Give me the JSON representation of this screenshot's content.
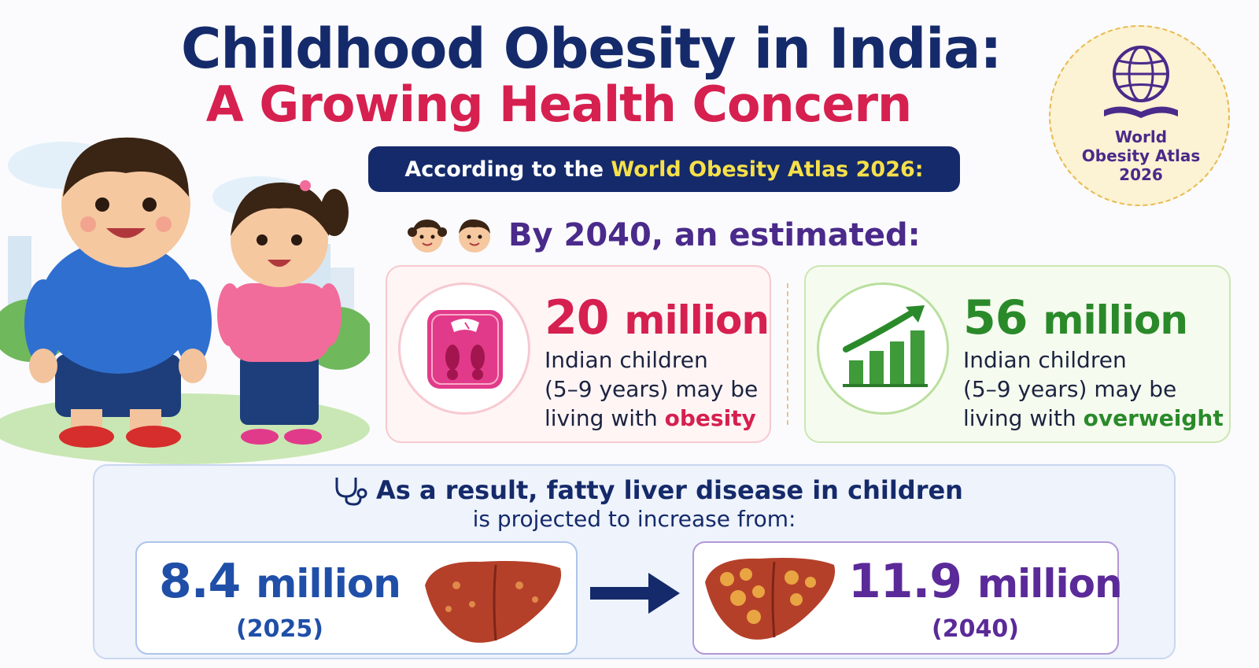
{
  "title": {
    "line1": "Childhood Obesity in India:",
    "line2": "A Growing Health Concern"
  },
  "banner": {
    "prefix": "According to the ",
    "highlight": "World Obesity Atlas 2026:"
  },
  "stamp": {
    "line1": "World",
    "line2": "Obesity Atlas",
    "line3": "2026"
  },
  "projection_heading": "By 2040, an estimated:",
  "stats": {
    "obesity": {
      "number": "20",
      "unit": "million",
      "desc_line1": "Indian children",
      "desc_line2": "(5–9 years) may be",
      "desc_line3_prefix": "living with ",
      "keyword": "obesity",
      "icon": "weighing-scale-icon",
      "color": "#d6204f"
    },
    "overweight": {
      "number": "56",
      "unit": "million",
      "desc_line1": "Indian children",
      "desc_line2": "(5–9 years) may be",
      "desc_line3_prefix": "living with ",
      "keyword": "overweight",
      "icon": "rising-bar-chart-icon",
      "color": "#2a8a2a"
    }
  },
  "result": {
    "line1": "As a result, fatty liver disease in children",
    "line2": "is projected to increase from:",
    "icon": "stethoscope-icon"
  },
  "fatty_liver": {
    "from": {
      "number": "8.4",
      "unit": "million",
      "year": "(2025)",
      "color": "#1f4fa8"
    },
    "to": {
      "number": "11.9",
      "unit": "million",
      "year": "(2040)",
      "color": "#5b2a99"
    }
  }
}
